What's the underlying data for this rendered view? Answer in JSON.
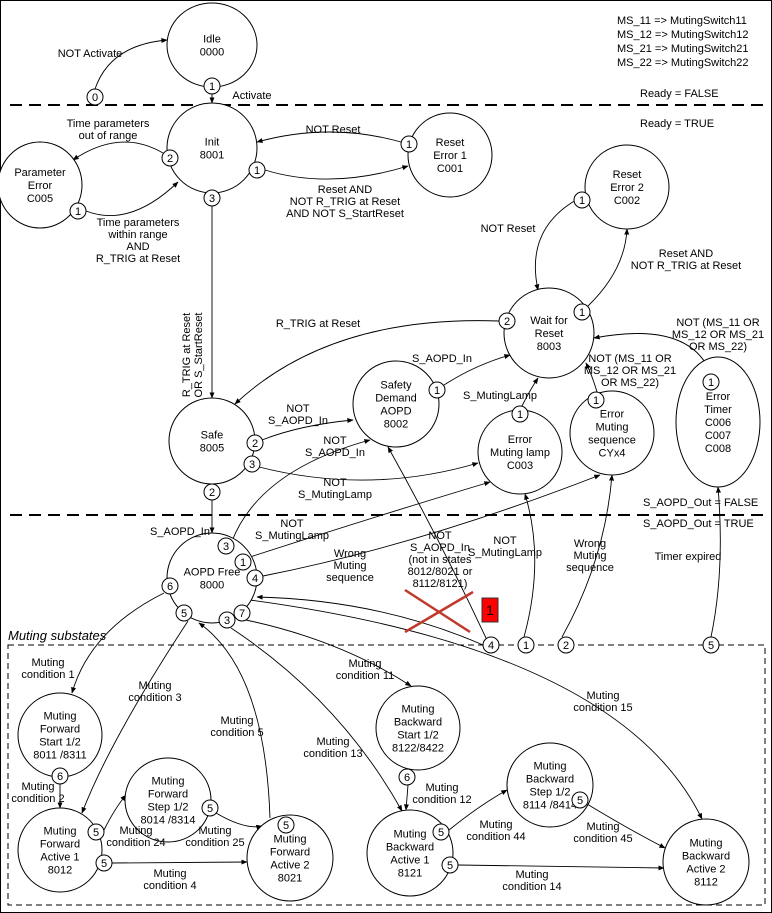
{
  "legend": [
    "MS_11 => MutingSwitch11",
    "MS_12 => MutingSwitch12",
    "MS_21 => MutingSwitch21",
    "MS_22 => MutingSwitch22"
  ],
  "region_labels": {
    "ready_false": "Ready = FALSE",
    "ready_true": "Ready = TRUE",
    "aopd_out_false": "S_AOPD_Out = FALSE",
    "aopd_out_true": "S_AOPD_Out = TRUE",
    "muting_substates": "Muting substates"
  },
  "states": [
    {
      "id": "idle",
      "lines": [
        "Idle",
        "0000"
      ]
    },
    {
      "id": "init",
      "lines": [
        "Init",
        "8001"
      ]
    },
    {
      "id": "reset-error-1",
      "lines": [
        "Reset",
        "Error 1",
        "C001"
      ]
    },
    {
      "id": "parameter-error",
      "lines": [
        "Parameter",
        "Error",
        "C005"
      ]
    },
    {
      "id": "reset-error-2",
      "lines": [
        "Reset",
        "Error 2",
        "C002"
      ]
    },
    {
      "id": "wait-for-reset",
      "lines": [
        "Wait for",
        "Reset",
        "8003"
      ]
    },
    {
      "id": "safety-demand",
      "lines": [
        "Safety",
        "Demand",
        "AOPD",
        "8002"
      ]
    },
    {
      "id": "safe",
      "lines": [
        "Safe",
        "8005"
      ]
    },
    {
      "id": "error-muting-lamp",
      "lines": [
        "Error",
        "Muting lamp",
        "C003"
      ]
    },
    {
      "id": "error-muting-sequence",
      "lines": [
        "Error",
        "Muting",
        "sequence",
        "CYx4"
      ]
    },
    {
      "id": "error-timer",
      "lines": [
        "Error",
        "Timer",
        "C006",
        "C007",
        "C008"
      ]
    },
    {
      "id": "aopd-free",
      "lines": [
        "AOPD Free",
        "8000"
      ]
    },
    {
      "id": "muting-forward-start",
      "lines": [
        "Muting",
        "Forward",
        "Start 1/2",
        "8011 /8311"
      ]
    },
    {
      "id": "muting-forward-active-1",
      "lines": [
        "Muting",
        "Forward",
        "Active 1",
        "8012"
      ]
    },
    {
      "id": "muting-forward-step",
      "lines": [
        "Muting",
        "Forward",
        "Step 1/2",
        "8014 /8314"
      ]
    },
    {
      "id": "muting-forward-active-2",
      "lines": [
        "Muting",
        "Forward",
        "Active 2",
        "8021"
      ]
    },
    {
      "id": "muting-backward-start",
      "lines": [
        "Muting",
        "Backward",
        "Start 1/2",
        "8122/8422"
      ]
    },
    {
      "id": "muting-backward-active-1",
      "lines": [
        "Muting",
        "Backward",
        "Active 1",
        "8121"
      ]
    },
    {
      "id": "muting-backward-step",
      "lines": [
        "Muting",
        "Backward",
        "Step 1/2",
        "8114 /8414"
      ]
    },
    {
      "id": "muting-backward-active-2",
      "lines": [
        "Muting",
        "Backward",
        "Active 2",
        "8112"
      ]
    }
  ],
  "ports": [
    "1",
    "0",
    "2",
    "1",
    "3",
    "1",
    "1",
    "1",
    "2",
    "1",
    "1",
    "1",
    "1",
    "1",
    "2",
    "3",
    "2",
    "3",
    "1",
    "4",
    "6",
    "5",
    "7",
    "3",
    "4",
    "1",
    "2",
    "5",
    "6",
    "5",
    "5",
    "5",
    "5",
    "6",
    "5",
    "5",
    "5"
  ],
  "transitions": [
    [
      "NOT Activate"
    ],
    [
      "Activate"
    ],
    [
      "Time parameters",
      "out of range"
    ],
    [
      "Time parameters",
      "within range",
      "AND",
      "R_TRIG at Reset"
    ],
    [
      "NOT Reset"
    ],
    [
      "Reset  AND",
      "NOT  R_TRIG at Reset",
      "AND  NOT S_StartReset"
    ],
    [
      "NOT Reset"
    ],
    [
      "Reset AND",
      "NOT R_TRIG at Reset"
    ],
    [
      "R_TRIG at Reset"
    ],
    [
      "NOT (MS_11 OR",
      "MS_12 OR MS_21",
      "OR MS_22)"
    ],
    [
      "NOT (MS_11 OR",
      "MS_12 OR MS_21",
      "OR MS_22)"
    ],
    [
      "S_AOPD_In"
    ],
    [
      "S_MutingLamp"
    ],
    [
      "NOT",
      "S_AOPD_In"
    ],
    [
      "NOT",
      "S_AOPD_In"
    ],
    [
      "NOT",
      "S_MutingLamp"
    ],
    [
      "S_AOPD_In"
    ],
    [
      "NOT",
      "S_MutingLamp"
    ],
    [
      "Wrong",
      "Muting",
      "sequence"
    ],
    [
      "NOT",
      "S_AOPD_In",
      "(not in states",
      "8012/8021 or",
      "8112/8121)"
    ],
    [
      "NOT",
      "S_MutingLamp"
    ],
    [
      "Wrong",
      "Muting",
      "sequence"
    ],
    [
      "Timer expired"
    ],
    [
      "Muting",
      "condition 1"
    ],
    [
      "Muting",
      "condition 3"
    ],
    [
      "Muting",
      "condition 5"
    ],
    [
      "Muting",
      "condition 13"
    ],
    [
      "Muting",
      "condition 11"
    ],
    [
      "Muting",
      "condition 15"
    ],
    [
      "Muting",
      "condition 2"
    ],
    [
      "Muting",
      "condition 24"
    ],
    [
      "Muting",
      "condition 25"
    ],
    [
      "Muting",
      "condition 4"
    ],
    [
      "Muting",
      "condition 12"
    ],
    [
      "Muting",
      "condition 44"
    ],
    [
      "Muting",
      "condition 45"
    ],
    [
      "Muting",
      "condition 14"
    ]
  ],
  "vertical_transition": [
    "R_TRIG at Reset",
    "OR S_StartReset"
  ],
  "annotation": {
    "badge": "1",
    "badge_color": "#ff0000",
    "strike_color": "#c0392b"
  }
}
